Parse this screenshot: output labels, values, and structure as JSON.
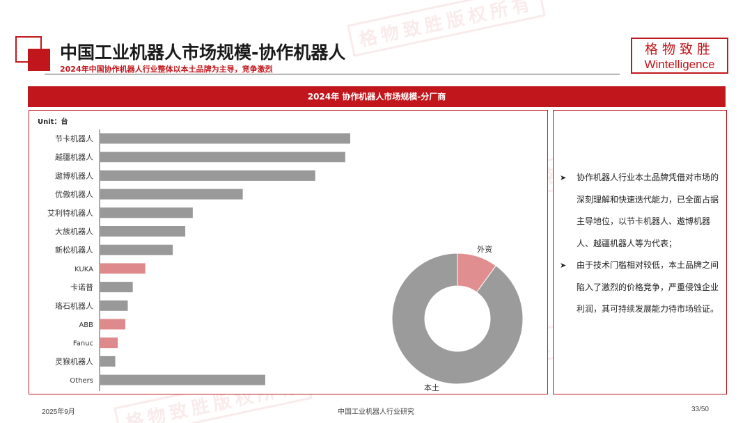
{
  "header": {
    "title": "中国工业机器人市场规模-协作机器人",
    "subtitle": "2024年中国协作机器人行业整体以本土品牌为主导，竞争激烈"
  },
  "brand": {
    "cn": "格物致胜",
    "en": "Wintelligence"
  },
  "watermark_text": "格物致胜版权所有",
  "section": {
    "title": "2024年  协作机器人市场规模-分厂商"
  },
  "colors": {
    "accent": "#c1171c",
    "local_bar": "#999999",
    "foreign_bar": "#de8a8c",
    "donut_local": "#9b9b9b",
    "donut_foreign": "#e08e90"
  },
  "chart_data": [
    {
      "type": "bar",
      "orientation": "horizontal",
      "unit_label": "Unit：台",
      "categories": [
        "节卡机器人",
        "越疆机器人",
        "遨博机器人",
        "优傲机器人",
        "艾利特机器人",
        "大族机器人",
        "新松机器人",
        "KUKA",
        "卡诺普",
        "珞石机器人",
        "ABB",
        "Fanuc",
        "灵猴机器人",
        "Others"
      ],
      "values": [
        100,
        98,
        86,
        57,
        37,
        34,
        29,
        18,
        13,
        11,
        10,
        7,
        6,
        66
      ],
      "highlight": [
        false,
        false,
        false,
        false,
        false,
        false,
        false,
        true,
        false,
        false,
        true,
        true,
        false,
        false
      ],
      "xlim": [
        0,
        100
      ],
      "grid": false
    },
    {
      "type": "pie",
      "style": "donut",
      "labels": [
        "外资",
        "本土"
      ],
      "values": [
        10,
        90
      ],
      "colors": [
        "#e08e90",
        "#9b9b9b"
      ]
    }
  ],
  "bullets": [
    "协作机器人行业本土品牌凭借对市场的深刻理解和快速迭代能力，已全面占据主导地位，以节卡机器人、遨博机器人、越疆机器人等为代表；",
    "由于技术门槛相对较低，本土品牌之间陷入了激烈的价格竞争，严重侵蚀企业利润，其可持续发展能力待市场验证。"
  ],
  "footer": {
    "date": "2025年9月",
    "center": "中国工业机器人行业研究",
    "page": "33/50"
  }
}
